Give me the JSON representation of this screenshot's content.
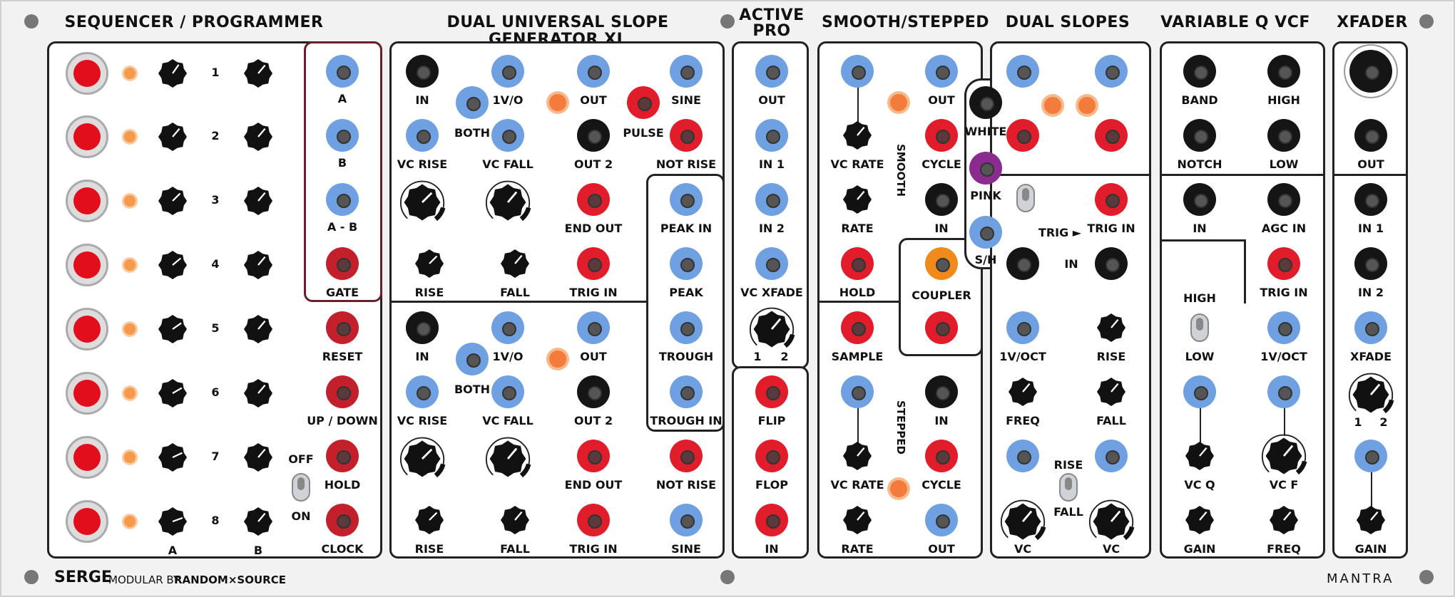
{
  "headers": {
    "seq": "SEQUENCER / PROGRAMMER",
    "dusg": "DUAL UNIVERSAL SLOPE GENERATOR XL",
    "active1": "ACTIVE",
    "active2": "PRO",
    "smooth": "SMOOTH/STEPPED",
    "dual": "DUAL SLOPES",
    "vcf": "VARIABLE Q VCF",
    "xfader": "XFADER"
  },
  "seq": {
    "steps": [
      "1",
      "2",
      "3",
      "4",
      "5",
      "6",
      "7",
      "8"
    ],
    "knob_a": "A",
    "knob_b": "B",
    "out_a": "A",
    "out_b": "B",
    "out_ab": "A - B",
    "gate": "GATE",
    "reset": "RESET",
    "updown": "UP / DOWN",
    "hold": "HOLD",
    "clock": "CLOCK",
    "off": "OFF",
    "on": "ON"
  },
  "dusg": {
    "in": "IN",
    "one_v": "1V/O",
    "out": "OUT",
    "sine": "SINE",
    "both": "BOTH",
    "pulse": "PULSE",
    "vc_rise": "VC RISE",
    "vc_fall": "VC FALL",
    "out2": "OUT 2",
    "not_rise": "NOT RISE",
    "end_out": "END OUT",
    "rise": "RISE",
    "fall": "FALL",
    "trig_in": "TRIG IN",
    "peak_in": "PEAK IN",
    "peak": "PEAK",
    "trough": "TROUGH",
    "trough_in": "TROUGH IN"
  },
  "active": {
    "out": "OUT",
    "in1": "IN 1",
    "in2": "IN 2",
    "vc_xfade": "VC XFADE",
    "one": "1",
    "two": "2",
    "flip": "FLIP",
    "flop": "FLOP",
    "in": "IN"
  },
  "smooth": {
    "out": "OUT",
    "vc_rate": "VC RATE",
    "cycle": "CYCLE",
    "rate": "RATE",
    "in": "IN",
    "hold": "HOLD",
    "smooth_v": "SMOOTH",
    "coupler": "COUPLER",
    "sample": "SAMPLE",
    "stepped_v": "STEPPED",
    "white": "WHITE",
    "pink": "PINK",
    "sh": "S/H"
  },
  "dual": {
    "trig": "TRIG ►",
    "trig_in": "TRIG IN",
    "in": "IN",
    "one_v_oct": "1V/OCT",
    "rise": "RISE",
    "freq": "FREQ",
    "fall": "FALL",
    "rise_t": "RISE",
    "fall_t": "FALL",
    "vc": "VC"
  },
  "vcf": {
    "band": "BAND",
    "high": "HIGH",
    "notch": "NOTCH",
    "low": "LOW",
    "in": "IN",
    "agc_in": "AGC IN",
    "trig_in": "TRIG IN",
    "high_sw": "HIGH",
    "low_sw": "LOW",
    "one_v_oct": "1V/OCT",
    "vc_q": "VC Q",
    "vc_f": "VC F",
    "gain": "GAIN",
    "freq": "FREQ"
  },
  "xfader": {
    "out": "OUT",
    "in1": "IN 1",
    "in2": "IN 2",
    "xfade": "XFADE",
    "one": "1",
    "two": "2",
    "gain": "GAIN"
  },
  "footer": {
    "brand": "SERGE",
    "tagline": "MODULAR BY",
    "maker": "RANDOM×SOURCE",
    "mantra": "MANTRA"
  }
}
